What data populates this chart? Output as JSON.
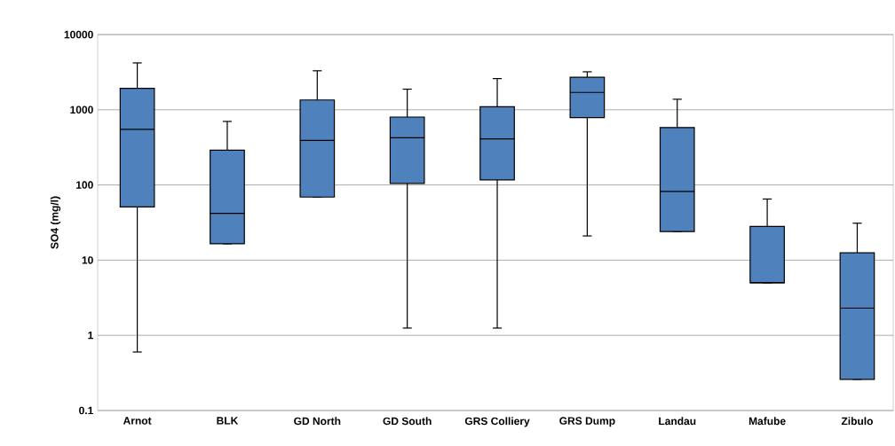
{
  "chart_data": {
    "type": "box",
    "ylabel": "SO4 (mg/l)",
    "log": "y",
    "grid": "y",
    "color": "#4f81bd",
    "categories": [
      "Arnot",
      "BLK",
      "GD North",
      "GD South",
      "GRS Colliery",
      "GRS Dump",
      "Landau",
      "Mafube",
      "Zibulo"
    ],
    "boxes": [
      {
        "low": 0.6,
        "q1": 51,
        "median": 550,
        "q3": 1930,
        "high": 4200
      },
      {
        "low": 16.5,
        "q1": 16.5,
        "median": 42,
        "q3": 290,
        "high": 700
      },
      {
        "low": 69,
        "q1": 69,
        "median": 390,
        "q3": 1350,
        "high": 3300
      },
      {
        "low": 1.25,
        "q1": 105,
        "median": 425,
        "q3": 800,
        "high": 1880
      },
      {
        "low": 1.25,
        "q1": 117,
        "median": 410,
        "q3": 1100,
        "high": 2600
      },
      {
        "low": 21,
        "q1": 785,
        "median": 1700,
        "q3": 2700,
        "high": 3200
      },
      {
        "low": 24,
        "q1": 24,
        "median": 82,
        "q3": 580,
        "high": 1380
      },
      {
        "low": 5,
        "q1": 5,
        "median": 5,
        "q3": 28,
        "high": 65
      },
      {
        "low": 0.26,
        "q1": 0.26,
        "median": 2.3,
        "q3": 12.5,
        "high": 31
      }
    ],
    "ylim": [
      0.1,
      10000
    ],
    "yticks": [
      0.1,
      1,
      10,
      100,
      1000,
      10000
    ]
  }
}
